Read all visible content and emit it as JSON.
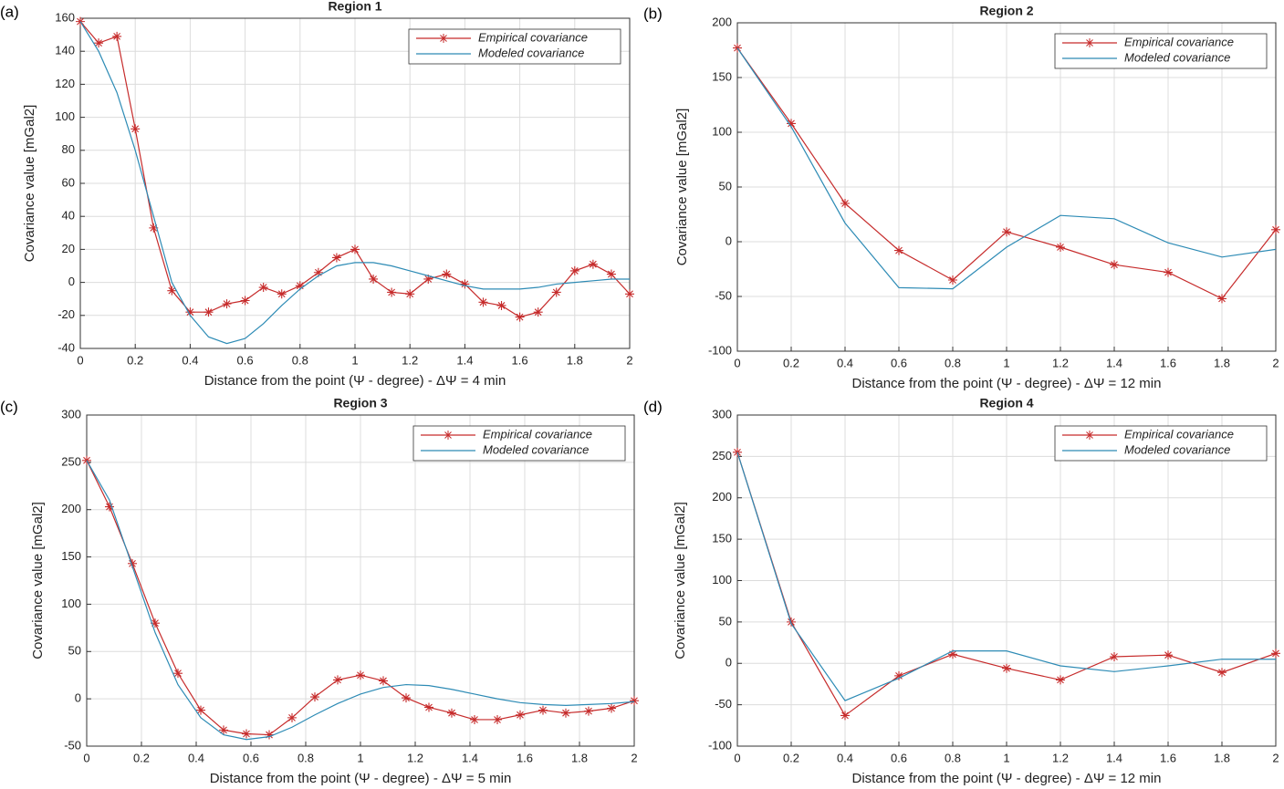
{
  "chart_data": [
    {
      "type": "line",
      "panel_label": "(a)",
      "title": "Region 1",
      "xlabel": "Distance from the point (Ψ - degree) - ΔΨ = 4 min",
      "ylabel": "Covariance value [mGal2]",
      "x": [
        0,
        0.0667,
        0.1333,
        0.2,
        0.2667,
        0.3333,
        0.4,
        0.4667,
        0.5333,
        0.6,
        0.6667,
        0.7333,
        0.8,
        0.8667,
        0.9333,
        1.0,
        1.0667,
        1.1333,
        1.2,
        1.2667,
        1.3333,
        1.4,
        1.4667,
        1.5333,
        1.6,
        1.6667,
        1.7333,
        1.8,
        1.8667,
        1.9333,
        2.0
      ],
      "series": [
        {
          "name": "Empirical covariance",
          "color": "#c62b2b",
          "marker": "asterisk",
          "values": [
            158,
            145,
            149,
            93,
            33,
            -5,
            -18,
            -18,
            -13,
            -11,
            -3,
            -7,
            -2,
            6,
            15,
            20,
            2,
            -6,
            -7,
            2,
            5,
            -1,
            -12,
            -14,
            -21,
            -18,
            -6,
            7,
            11,
            5,
            -7
          ]
        },
        {
          "name": "Modeled covariance",
          "color": "#2d8bb5",
          "values": [
            158,
            140,
            115,
            80,
            40,
            0,
            -20,
            -33,
            -37,
            -34,
            -25,
            -14,
            -4,
            4,
            10,
            12,
            12,
            10,
            7,
            4,
            1,
            -2,
            -4,
            -4,
            -4,
            -3,
            -1,
            0,
            1,
            2,
            2
          ]
        }
      ],
      "xlim": [
        0,
        2
      ],
      "xticks": [
        0,
        0.2,
        0.4,
        0.6,
        0.8,
        1,
        1.2,
        1.4,
        1.6,
        1.8,
        2
      ],
      "ylim": [
        -40,
        160
      ],
      "yticks": [
        -40,
        -20,
        0,
        20,
        40,
        60,
        80,
        100,
        120,
        140,
        160
      ],
      "grid": true,
      "legend": "upper-right"
    },
    {
      "type": "line",
      "panel_label": "(b)",
      "title": "Region 2",
      "xlabel": "Distance from the point (Ψ - degree) - ΔΨ = 12 min",
      "ylabel": "Covariance value [mGal2]",
      "x": [
        0,
        0.2,
        0.4,
        0.6,
        0.8,
        1,
        1.2,
        1.4,
        1.6,
        1.8,
        2
      ],
      "series": [
        {
          "name": "Empirical covariance",
          "color": "#c62b2b",
          "marker": "asterisk",
          "values": [
            177,
            108,
            35,
            -8,
            -35,
            9,
            -5,
            -21,
            -28,
            -52,
            11
          ]
        },
        {
          "name": "Modeled covariance",
          "color": "#2d8bb5",
          "values": [
            177,
            105,
            17,
            -42,
            -43,
            -5,
            24,
            21,
            -1,
            -14,
            -7
          ]
        }
      ],
      "xlim": [
        0,
        2
      ],
      "xticks": [
        0,
        0.2,
        0.4,
        0.6,
        0.8,
        1,
        1.2,
        1.4,
        1.6,
        1.8,
        2
      ],
      "ylim": [
        -100,
        200
      ],
      "yticks": [
        -100,
        -50,
        0,
        50,
        100,
        150,
        200
      ],
      "grid": true,
      "legend": "upper-right"
    },
    {
      "type": "line",
      "panel_label": "(c)",
      "title": "Region 3",
      "xlabel": "Distance from the point (Ψ - degree) - ΔΨ = 5 min",
      "ylabel": "Covariance value [mGal2]",
      "x": [
        0,
        0.0833,
        0.1667,
        0.25,
        0.3333,
        0.4167,
        0.5,
        0.5833,
        0.6667,
        0.75,
        0.8333,
        0.9167,
        1.0,
        1.0833,
        1.1667,
        1.25,
        1.3333,
        1.4167,
        1.5,
        1.5833,
        1.6667,
        1.75,
        1.8333,
        1.9167,
        2.0
      ],
      "series": [
        {
          "name": "Empirical covariance",
          "color": "#c62b2b",
          "marker": "asterisk",
          "values": [
            252,
            203,
            143,
            80,
            27,
            -12,
            -33,
            -37,
            -38,
            -20,
            2,
            20,
            25,
            19,
            1,
            -9,
            -15,
            -22,
            -22,
            -17,
            -12,
            -15,
            -13,
            -10,
            -2
          ]
        },
        {
          "name": "Modeled covariance",
          "color": "#2d8bb5",
          "values": [
            252,
            210,
            140,
            70,
            15,
            -20,
            -38,
            -43,
            -40,
            -30,
            -17,
            -5,
            5,
            12,
            15,
            14,
            10,
            5,
            0,
            -4,
            -6,
            -7,
            -6,
            -5,
            -3
          ]
        }
      ],
      "xlim": [
        0,
        2
      ],
      "xticks": [
        0,
        0.2,
        0.4,
        0.6,
        0.8,
        1,
        1.2,
        1.4,
        1.6,
        1.8,
        2
      ],
      "ylim": [
        -50,
        300
      ],
      "yticks": [
        -50,
        0,
        50,
        100,
        150,
        200,
        250,
        300
      ],
      "grid": true,
      "legend": "upper-right"
    },
    {
      "type": "line",
      "panel_label": "(d)",
      "title": "Region 4",
      "xlabel": "Distance from the point (Ψ - degree) - ΔΨ = 12 min",
      "ylabel": "Covariance value [mGal2]",
      "x": [
        0,
        0.2,
        0.4,
        0.6,
        0.8,
        1,
        1.2,
        1.4,
        1.6,
        1.8,
        2
      ],
      "series": [
        {
          "name": "Empirical covariance",
          "color": "#c62b2b",
          "marker": "asterisk",
          "values": [
            255,
            50,
            -63,
            -15,
            11,
            -6,
            -20,
            8,
            10,
            -11,
            12
          ]
        },
        {
          "name": "Modeled covariance",
          "color": "#2d8bb5",
          "values": [
            255,
            48,
            -45,
            -18,
            15,
            15,
            -3,
            -10,
            -3,
            5,
            5
          ]
        }
      ],
      "xlim": [
        0,
        2
      ],
      "xticks": [
        0,
        0.2,
        0.4,
        0.6,
        0.8,
        1,
        1.2,
        1.4,
        1.6,
        1.8,
        2
      ],
      "ylim": [
        -100,
        300
      ],
      "yticks": [
        -100,
        -50,
        0,
        50,
        100,
        150,
        200,
        250,
        300
      ],
      "grid": true,
      "legend": "upper-right"
    }
  ]
}
